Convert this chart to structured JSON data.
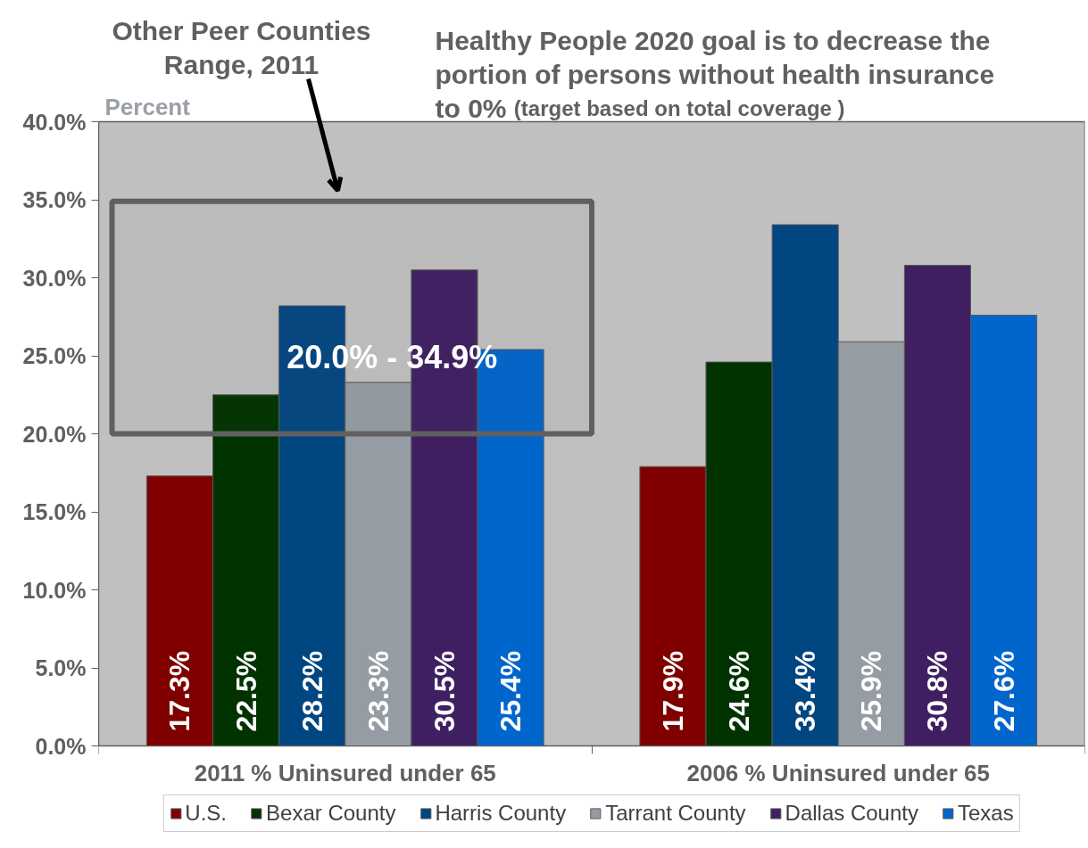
{
  "chart_data": {
    "type": "bar",
    "ylabel": "Percent",
    "categories": [
      "2011 % Uninsured under 65",
      "2006 % Uninsured under 65"
    ],
    "series": [
      {
        "name": "U.S.",
        "color": "#800000",
        "values": [
          17.3,
          17.9
        ],
        "value_labels": [
          "17.3%",
          "17.9%"
        ]
      },
      {
        "name": "Bexar County",
        "color": "#003300",
        "values": [
          22.5,
          24.6
        ],
        "value_labels": [
          "22.5%",
          "24.6%"
        ]
      },
      {
        "name": "Harris County",
        "color": "#004680",
        "values": [
          28.2,
          33.4
        ],
        "value_labels": [
          "28.2%",
          "33.4%"
        ]
      },
      {
        "name": "Tarrant County",
        "color": "#959ca3",
        "values": [
          23.3,
          25.9
        ],
        "value_labels": [
          "23.3%",
          "25.9%"
        ]
      },
      {
        "name": "Dallas County",
        "color": "#3f1f62",
        "values": [
          30.5,
          30.8
        ],
        "value_labels": [
          "30.5%",
          "30.8%"
        ]
      },
      {
        "name": "Texas",
        "color": "#0066cc",
        "values": [
          25.4,
          27.6
        ],
        "value_labels": [
          "25.4%",
          "27.6%"
        ]
      }
    ],
    "ylim": [
      0,
      40
    ],
    "yticks": [
      {
        "value": 0,
        "label": "0.0%"
      },
      {
        "value": 5,
        "label": "5.0%"
      },
      {
        "value": 10,
        "label": "10.0%"
      },
      {
        "value": 15,
        "label": "15.0%"
      },
      {
        "value": 20,
        "label": "20.0%"
      },
      {
        "value": 25,
        "label": "25.0%"
      },
      {
        "value": 30,
        "label": "30.0%"
      },
      {
        "value": 35,
        "label": "35.0%"
      },
      {
        "value": 40,
        "label": "40.0%"
      }
    ],
    "bands": [
      {
        "axis": "y",
        "from": 20.0,
        "to": 34.9,
        "label": "20.0% - 34.9%",
        "color": "#606060"
      }
    ],
    "annotations": [
      "Other Peer Counties Range, 2011",
      "Healthy People 2020 goal is to decrease the portion of persons without health insurance to 0% (target based on total coverage )"
    ],
    "legend": "bottom"
  }
}
